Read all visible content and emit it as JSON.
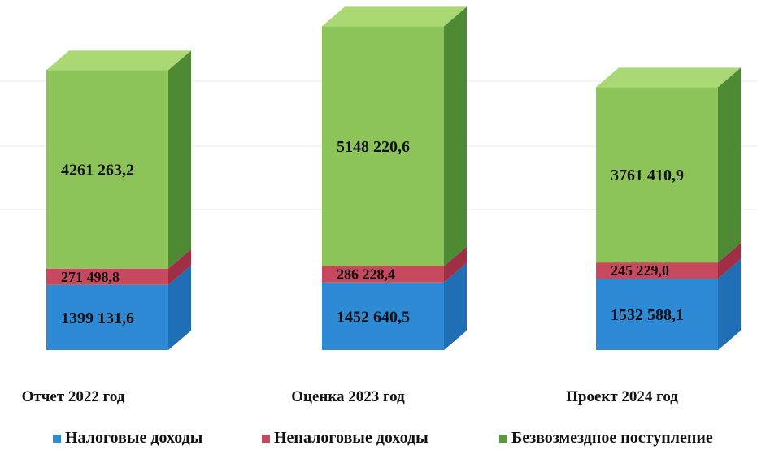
{
  "chart_data": {
    "type": "bar",
    "stacked": true,
    "categories": [
      "Отчет 2022 год",
      "Оценка 2023 год",
      "Проект 2024 год"
    ],
    "series": [
      {
        "name": "Налоговые доходы",
        "values": [
          1399131.6,
          1452640.5,
          1532588.1
        ],
        "labels": [
          "1399 131,6",
          "1452 640,5",
          "1532 588,1"
        ],
        "color": "#2f8ad6"
      },
      {
        "name": "Неналоговые доходы",
        "values": [
          271498.8,
          286228.4,
          245229.0
        ],
        "labels": [
          "271 498,8",
          "286 228,4",
          "245 229,0"
        ],
        "color": "#c8485e"
      },
      {
        "name": "Безвозмездное поступление",
        "values": [
          4261263.2,
          5148220.6,
          3761410.9
        ],
        "labels": [
          "4261 263,2",
          "5148 220,6",
          "3761 410,9"
        ],
        "color": "#8cc45a"
      }
    ],
    "legend_position": "bottom",
    "grid": true
  }
}
